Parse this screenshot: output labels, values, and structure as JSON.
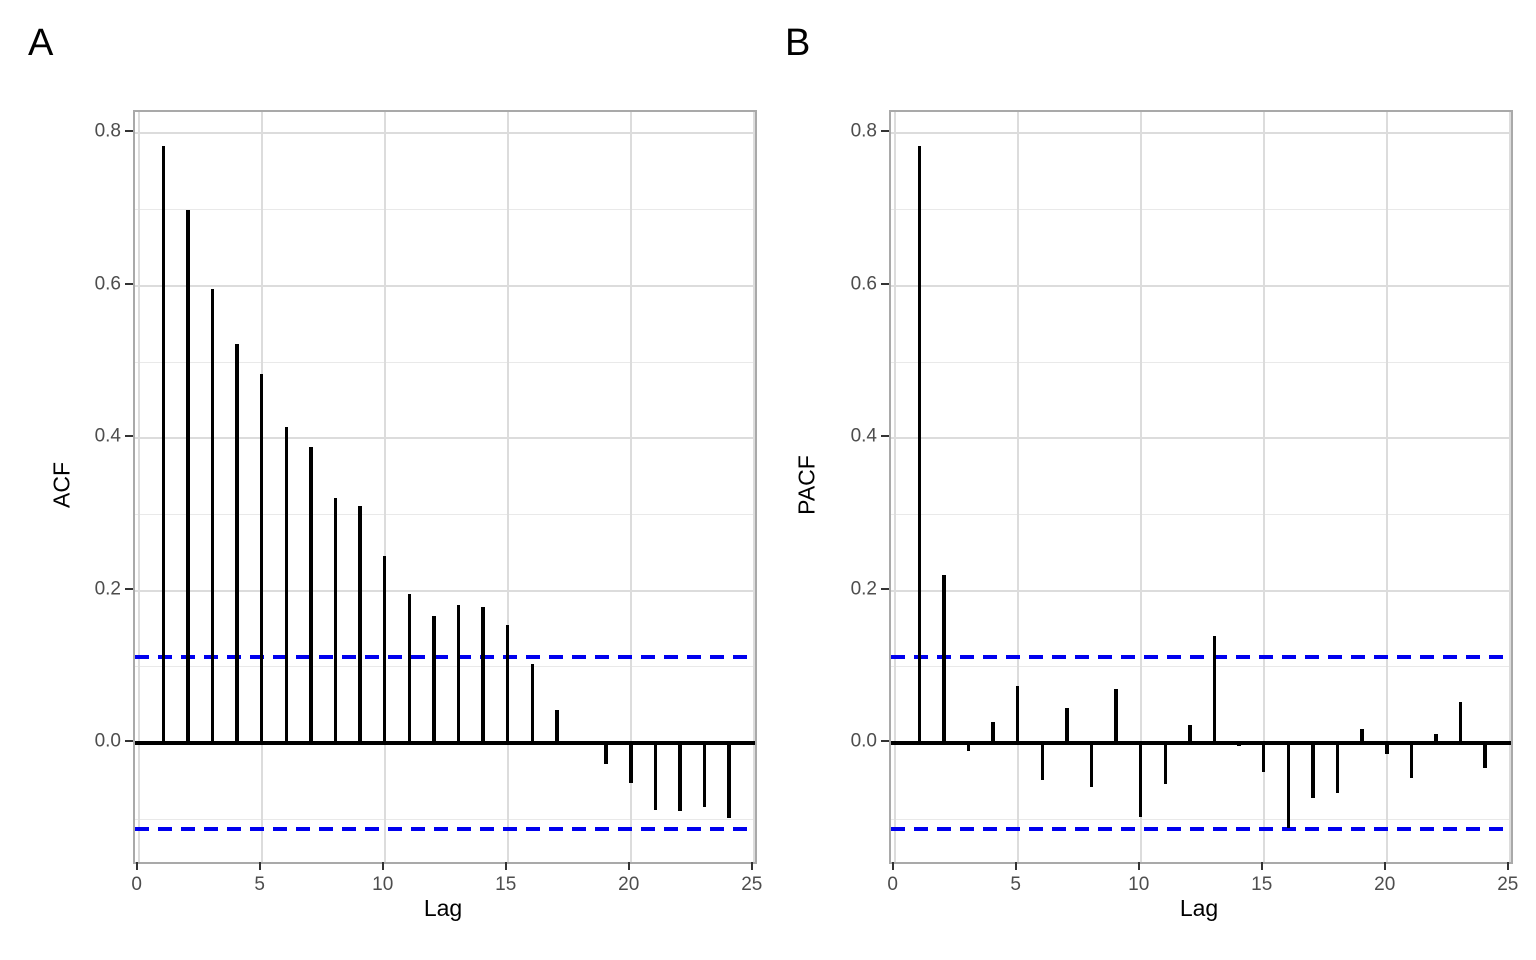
{
  "figure": {
    "background": "#ffffff",
    "bar_color": "#000000",
    "conf_line_color": "#0000ee"
  },
  "chart_data": [
    {
      "type": "bar",
      "panel_tag": "A",
      "title": "",
      "xlabel": "Lag",
      "ylabel": "ACF",
      "x": [
        1,
        2,
        3,
        4,
        5,
        6,
        7,
        8,
        9,
        10,
        11,
        12,
        13,
        14,
        15,
        16,
        17,
        18,
        19,
        20,
        21,
        22,
        23,
        24
      ],
      "values": [
        0.783,
        0.699,
        0.596,
        0.524,
        0.484,
        0.415,
        0.388,
        0.322,
        0.311,
        0.246,
        0.196,
        0.167,
        0.181,
        0.179,
        0.155,
        0.104,
        0.044,
        0.002,
        -0.028,
        -0.053,
        -0.088,
        -0.089,
        -0.084,
        -0.098
      ],
      "conf_bounds": {
        "upper": 0.113,
        "lower": -0.113,
        "line_style": "dashed",
        "color": "#0000ee"
      },
      "zero_line": true,
      "xticks": [
        {
          "v": 0,
          "label": "0"
        },
        {
          "v": 5,
          "label": "5"
        },
        {
          "v": 10,
          "label": "10"
        },
        {
          "v": 15,
          "label": "15"
        },
        {
          "v": 20,
          "label": "20"
        },
        {
          "v": 25,
          "label": "25"
        }
      ],
      "yticks": [
        {
          "v": 0.0,
          "label": "0.0"
        },
        {
          "v": 0.2,
          "label": "0.2"
        },
        {
          "v": 0.4,
          "label": "0.4"
        },
        {
          "v": 0.6,
          "label": "0.6"
        },
        {
          "v": 0.8,
          "label": "0.8"
        }
      ],
      "y_minor_gridlines": [
        -0.1,
        0.1,
        0.3,
        0.5,
        0.7
      ],
      "xlim": [
        -0.15,
        25.05
      ],
      "ylim": [
        -0.156,
        0.828
      ],
      "grid": "horizontal major+minor, vertical major only",
      "legend": "none"
    },
    {
      "type": "bar",
      "panel_tag": "B",
      "title": "",
      "xlabel": "Lag",
      "ylabel": "PACF",
      "x": [
        1,
        2,
        3,
        4,
        5,
        6,
        7,
        8,
        9,
        10,
        11,
        12,
        13,
        14,
        15,
        16,
        17,
        18,
        19,
        20,
        21,
        22,
        23,
        24
      ],
      "values": [
        0.783,
        0.22,
        -0.011,
        0.028,
        0.075,
        -0.049,
        0.046,
        -0.057,
        0.071,
        -0.097,
        -0.054,
        0.024,
        0.14,
        -0.004,
        -0.038,
        -0.112,
        -0.072,
        -0.066,
        0.019,
        -0.014,
        -0.046,
        0.012,
        0.054,
        -0.033
      ],
      "conf_bounds": {
        "upper": 0.113,
        "lower": -0.113,
        "line_style": "dashed",
        "color": "#0000ee"
      },
      "zero_line": true,
      "xticks": [
        {
          "v": 0,
          "label": "0"
        },
        {
          "v": 5,
          "label": "5"
        },
        {
          "v": 10,
          "label": "10"
        },
        {
          "v": 15,
          "label": "15"
        },
        {
          "v": 20,
          "label": "20"
        },
        {
          "v": 25,
          "label": "25"
        }
      ],
      "yticks": [
        {
          "v": 0.0,
          "label": "0.0"
        },
        {
          "v": 0.2,
          "label": "0.2"
        },
        {
          "v": 0.4,
          "label": "0.4"
        },
        {
          "v": 0.6,
          "label": "0.6"
        },
        {
          "v": 0.8,
          "label": "0.8"
        }
      ],
      "y_minor_gridlines": [
        -0.1,
        0.1,
        0.3,
        0.5,
        0.7
      ],
      "xlim": [
        -0.15,
        25.05
      ],
      "ylim": [
        -0.156,
        0.828
      ],
      "grid": "horizontal major+minor, vertical major only",
      "legend": "none"
    }
  ]
}
